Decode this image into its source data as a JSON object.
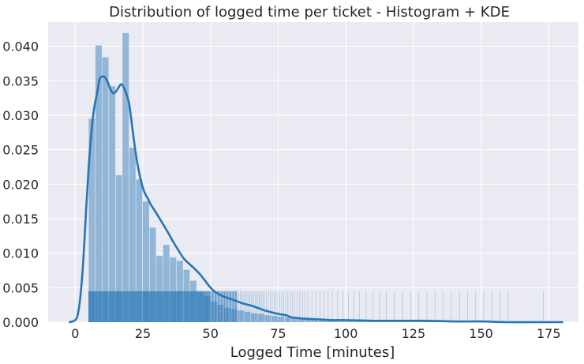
{
  "chart_data": {
    "type": "bar",
    "title": "Distribution of logged time per ticket - Histogram + KDE",
    "xlabel": "Logged Time [minutes]",
    "ylabel": "",
    "xlim": [
      -10,
      186
    ],
    "ylim": [
      0,
      0.0435
    ],
    "xticks": [
      0,
      25,
      50,
      75,
      100,
      125,
      150,
      175
    ],
    "yticks": [
      0.0,
      0.005,
      0.01,
      0.015,
      0.02,
      0.025,
      0.03,
      0.035,
      0.04
    ],
    "ytick_labels": [
      "0.000",
      "0.005",
      "0.010",
      "0.015",
      "0.020",
      "0.025",
      "0.030",
      "0.035",
      "0.040"
    ],
    "grid": true,
    "colors": {
      "background": "#eaeaf2",
      "grid": "#ffffff",
      "bars": "#92b6d8",
      "kde": "#2676b5",
      "rug": "#2676b5"
    },
    "histogram": {
      "bin_width": 2.5,
      "bin_starts": [
        5,
        7.5,
        10,
        12.5,
        15,
        17.5,
        20,
        22.5,
        25,
        27.5,
        30,
        32.5,
        35,
        37.5,
        40,
        42.5,
        45,
        47.5,
        50,
        52.5,
        55,
        57.5,
        60,
        62.5,
        65,
        67.5,
        70,
        72.5,
        75,
        77.5,
        80,
        82.5,
        85,
        87.5,
        90,
        92.5,
        95,
        97.5,
        100,
        102.5,
        105,
        107.5,
        110,
        112.5,
        115,
        117.5,
        120,
        122.5,
        125,
        127.5,
        130,
        132.5,
        135,
        137.5,
        140,
        142.5,
        145,
        147.5,
        150,
        152.5,
        155,
        157.5,
        160,
        162.5,
        165,
        167.5,
        170,
        172.5,
        175,
        177.5
      ],
      "densities": [
        0.0295,
        0.0401,
        0.0384,
        0.0342,
        0.0213,
        0.0419,
        0.0253,
        0.0207,
        0.0175,
        0.0137,
        0.0096,
        0.0112,
        0.0094,
        0.0089,
        0.0076,
        0.006,
        0.0044,
        0.0038,
        0.003,
        0.0025,
        0.0021,
        0.0019,
        0.0017,
        0.0015,
        0.0013,
        0.0012,
        0.001,
        0.0009,
        0.0008,
        0.0007,
        0.0006,
        0.0005,
        0.0005,
        0.0004,
        0.0004,
        0.0003,
        0.0003,
        0.0003,
        0.0002,
        0.0002,
        0.0002,
        0.0002,
        0.0001,
        0.0001,
        0.0001,
        0.0001,
        0.0001,
        0.0001,
        0.0001,
        0.0001,
        0.0001,
        0.0001,
        0.0001,
        0.0001,
        0.0001,
        0.0001,
        0.0001,
        0.0001,
        0.0001,
        0.0001,
        0.0001,
        0.0001,
        0.0001,
        0,
        0,
        0,
        0,
        0,
        0.0001,
        0
      ]
    },
    "kde": {
      "x": [
        -2,
        0,
        1,
        2,
        3,
        4,
        5,
        6,
        7,
        8,
        9,
        10,
        11,
        12,
        13,
        14,
        15,
        16,
        17,
        18,
        19,
        20,
        21,
        22,
        23,
        24,
        25,
        26,
        27,
        28,
        30,
        32,
        34,
        36,
        38,
        40,
        42,
        44,
        46,
        48,
        50,
        52,
        55,
        58,
        60,
        62,
        65,
        68,
        70,
        75,
        78,
        80,
        85,
        90,
        95,
        100,
        110,
        120,
        130,
        140,
        150,
        160,
        170,
        180
      ],
      "y": [
        0.0,
        0.0003,
        0.0012,
        0.004,
        0.009,
        0.016,
        0.0225,
        0.0275,
        0.031,
        0.033,
        0.0352,
        0.0356,
        0.0355,
        0.0348,
        0.0338,
        0.0332,
        0.0334,
        0.034,
        0.0345,
        0.034,
        0.033,
        0.0315,
        0.0285,
        0.0255,
        0.023,
        0.021,
        0.0195,
        0.0185,
        0.0178,
        0.017,
        0.0158,
        0.0145,
        0.0132,
        0.0118,
        0.0105,
        0.0093,
        0.0085,
        0.0078,
        0.007,
        0.006,
        0.005,
        0.0043,
        0.0037,
        0.0033,
        0.003,
        0.0027,
        0.0024,
        0.002,
        0.0017,
        0.0012,
        0.001,
        0.0007,
        0.0005,
        0.0004,
        0.0003,
        0.0003,
        0.0002,
        0.0002,
        0.0002,
        0.0001,
        0.0001,
        0.0,
        0.0,
        0.0
      ]
    },
    "rug": {
      "height": 0.0045,
      "x": [
        5.0,
        5.3,
        5.6,
        5.9,
        6.2,
        6.5,
        6.8,
        7.1,
        7.4,
        7.7,
        8.0,
        8.3,
        8.6,
        8.9,
        9.2,
        9.5,
        9.8,
        10.1,
        10.4,
        10.7,
        11.0,
        11.3,
        11.6,
        11.9,
        12.2,
        12.5,
        12.8,
        13.1,
        13.4,
        13.7,
        14.0,
        14.3,
        14.6,
        14.9,
        15.2,
        15.5,
        15.8,
        16.1,
        16.4,
        16.7,
        17.0,
        17.3,
        17.6,
        17.9,
        18.2,
        18.5,
        18.8,
        19.1,
        19.4,
        19.7,
        20.0,
        20.3,
        20.6,
        20.9,
        21.2,
        21.5,
        21.8,
        22.1,
        22.4,
        22.7,
        23.0,
        23.3,
        23.6,
        23.9,
        24.2,
        24.5,
        24.8,
        25.1,
        25.4,
        25.7,
        26.0,
        26.3,
        26.6,
        26.9,
        27.2,
        27.5,
        27.8,
        28.1,
        28.4,
        28.7,
        29.0,
        29.3,
        29.6,
        29.9,
        30.2,
        30.5,
        30.8,
        31.1,
        31.4,
        31.7,
        32.0,
        32.3,
        32.6,
        32.9,
        33.2,
        33.5,
        33.8,
        34.1,
        34.4,
        34.7,
        35.0,
        35.3,
        35.6,
        35.9,
        36.2,
        36.5,
        36.8,
        37.1,
        37.4,
        37.7,
        38.0,
        38.3,
        38.6,
        38.9,
        39.2,
        39.5,
        39.8,
        40.1,
        40.4,
        40.7,
        41.0,
        41.3,
        41.6,
        41.9,
        42.2,
        42.5,
        42.8,
        43.1,
        43.4,
        43.7,
        44.0,
        44.3,
        44.6,
        44.9,
        45.2,
        45.5,
        45.8,
        46.1,
        46.4,
        46.7,
        47.0,
        47.3,
        47.6,
        47.9,
        48.2,
        48.5,
        48.8,
        49.1,
        49.4,
        49.7,
        50.0,
        50.4,
        50.8,
        51.2,
        51.6,
        52.0,
        52.4,
        52.8,
        53.2,
        53.6,
        54.0,
        54.4,
        54.8,
        55.2,
        55.6,
        56.0,
        56.4,
        56.8,
        57.2,
        57.6,
        58.0,
        58.4,
        58.8,
        59.2,
        59.6,
        60.0,
        60.5,
        61.0,
        61.5,
        62.0,
        62.5,
        63.0,
        63.5,
        64.0,
        64.5,
        65.0,
        65.5,
        66.0,
        66.5,
        67.0,
        67.5,
        68.0,
        68.5,
        69.0,
        69.5,
        70.0,
        70.7,
        71.4,
        72.1,
        72.8,
        73.5,
        74.2,
        74.9,
        75.6,
        76.3,
        77.0,
        77.8,
        78.6,
        79.4,
        80.2,
        81.0,
        82.0,
        83.0,
        84.0,
        85.0,
        86.0,
        87.5,
        89.0,
        90.5,
        92.0,
        93.5,
        95.0,
        97.0,
        99.0,
        101.0,
        103.0,
        105.0,
        107.5,
        110.0,
        112.5,
        115.0,
        118.0,
        121.0,
        124.0,
        127.0,
        130.0,
        133.0,
        136.0,
        139.0,
        142.0,
        145.0,
        148.0,
        151.0,
        154.0,
        157.0,
        160.0,
        173.0
      ]
    }
  }
}
